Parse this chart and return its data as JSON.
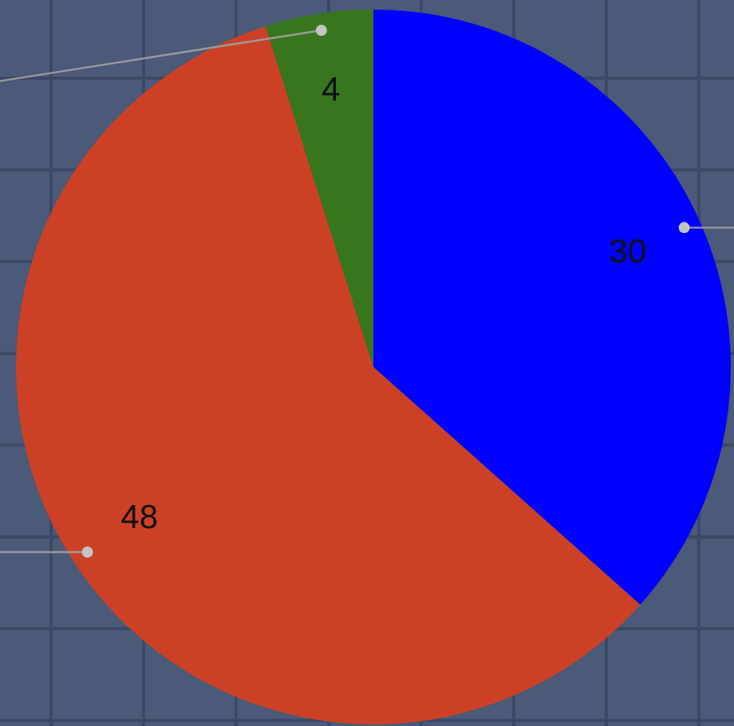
{
  "chart_data": {
    "type": "pie",
    "categories": [
      null,
      null,
      null
    ],
    "values": [
      30,
      48,
      4
    ],
    "colors": [
      "#0000ff",
      "#cc4125",
      "#38761d"
    ],
    "data_labels": true
  }
}
